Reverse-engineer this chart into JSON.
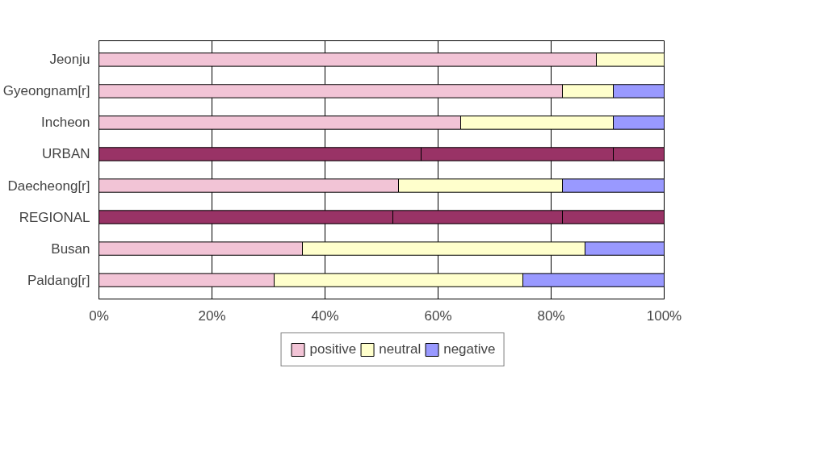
{
  "chart_data": {
    "type": "bar",
    "orientation": "horizontal",
    "stacked": true,
    "categories": [
      "Jeonju",
      "Gyeongnam[r]",
      "Incheon",
      "URBAN",
      "Daecheong[r]",
      "REGIONAL",
      "Busan",
      "Paldang[r]"
    ],
    "series": [
      {
        "name": "positive",
        "color": "#f2c4d6",
        "colors": [
          "#f2c4d6",
          "#f2c4d6",
          "#f2c4d6",
          "#993366",
          "#f2c4d6",
          "#993366",
          "#f2c4d6",
          "#f2c4d6"
        ],
        "values": [
          88,
          82,
          64,
          57,
          53,
          52,
          36,
          31
        ]
      },
      {
        "name": "neutral",
        "color": "#ffffcc",
        "colors": [
          "#ffffcc",
          "#ffffcc",
          "#ffffcc",
          "#993366",
          "#ffffcc",
          "#993366",
          "#ffffcc",
          "#ffffcc"
        ],
        "values": [
          12,
          9,
          27,
          34,
          29,
          30,
          50,
          44
        ]
      },
      {
        "name": "negative",
        "color": "#9999ff",
        "colors": [
          "#9999ff",
          "#9999ff",
          "#9999ff",
          "#993366",
          "#9999ff",
          "#993366",
          "#9999ff",
          "#9999ff"
        ],
        "values": [
          0,
          9,
          9,
          9,
          18,
          18,
          14,
          25
        ]
      }
    ],
    "xlim": [
      0,
      100
    ],
    "xticks": [
      {
        "value": 0,
        "label": "0%"
      },
      {
        "value": 20,
        "label": "20%"
      },
      {
        "value": 40,
        "label": "40%"
      },
      {
        "value": 60,
        "label": "60%"
      },
      {
        "value": 80,
        "label": "80%"
      },
      {
        "value": 100,
        "label": "100%"
      }
    ],
    "grid": "x",
    "legend": "bottom"
  }
}
